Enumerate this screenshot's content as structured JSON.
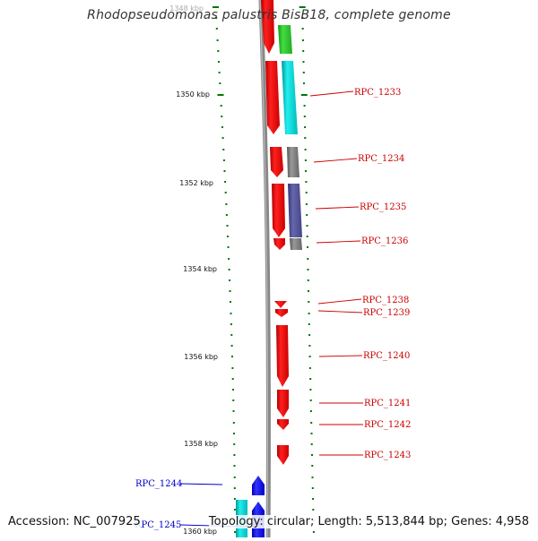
{
  "title": "Rhodopseudomonas palustris BisB18, complete genome",
  "footer": {
    "accession": "Accession: NC_007925",
    "topology": "Topology: circular; Length: 5,513,844 bp; Genes: 4,958"
  },
  "ruler": {
    "labels": [
      "1348 kbp",
      "1350 kbp",
      "1352 kbp",
      "1354 kbp",
      "1356 kbp",
      "1358 kbp",
      "1360 kbp"
    ]
  },
  "colors": {
    "forward_red": "#ff0000",
    "green": "#22cc22",
    "cyan": "#00cccc",
    "grey": "#777777",
    "slate_blue": "#4d4d99",
    "blue": "#0000ff",
    "label_red": "#cc0000",
    "label_blue": "#0000cc",
    "tick_green": "#007700",
    "backbone": "#888888"
  },
  "gene_labels": [
    {
      "name": "RPC_1233",
      "color": "red"
    },
    {
      "name": "RPC_1234",
      "color": "red"
    },
    {
      "name": "RPC_1235",
      "color": "red"
    },
    {
      "name": "RPC_1236",
      "color": "red"
    },
    {
      "name": "RPC_1238",
      "color": "red"
    },
    {
      "name": "RPC_1239",
      "color": "red"
    },
    {
      "name": "RPC_1240",
      "color": "red"
    },
    {
      "name": "RPC_1241",
      "color": "red"
    },
    {
      "name": "RPC_1242",
      "color": "red"
    },
    {
      "name": "RPC_1243",
      "color": "red"
    },
    {
      "name": "RPC_1244",
      "color": "blue"
    },
    {
      "name": "RPC_1245",
      "color": "blue"
    }
  ]
}
